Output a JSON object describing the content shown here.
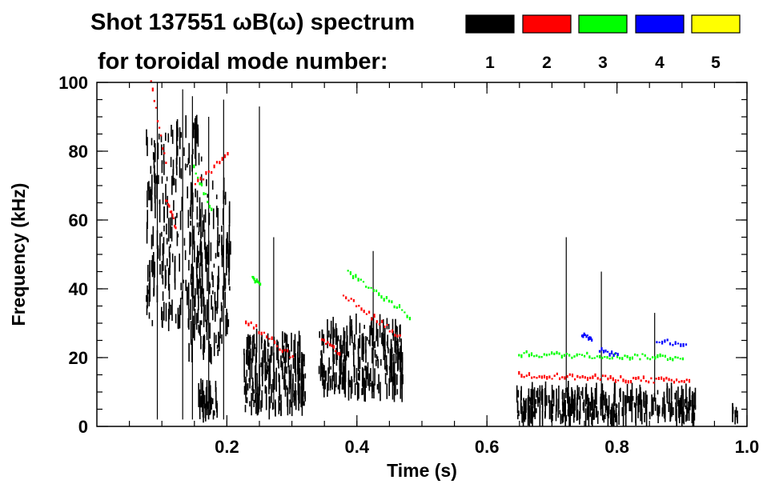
{
  "chart_data": {
    "type": "scatter",
    "title_line1": "Shot 137551 ωB(ω) spectrum",
    "title_line2": "for toroidal mode number:",
    "xlabel": "Time (s)",
    "ylabel": "Frequency (kHz)",
    "xlim": [
      0.0,
      1.0
    ],
    "ylim": [
      0,
      100
    ],
    "x_ticks": [
      0.2,
      0.4,
      0.6,
      0.8,
      1.0
    ],
    "x_tick_labels": [
      "0.2",
      "0.4",
      "0.6",
      "0.8",
      "1.0"
    ],
    "y_ticks": [
      0,
      20,
      40,
      60,
      80,
      100
    ],
    "y_tick_labels": [
      "0",
      "20",
      "40",
      "60",
      "80",
      "100"
    ],
    "x_minor_step": 0.05,
    "y_minor_step": 5,
    "legend": [
      {
        "mode": "1",
        "color": "#000000"
      },
      {
        "mode": "2",
        "color": "#ff0000"
      },
      {
        "mode": "3",
        "color": "#00ff00"
      },
      {
        "mode": "4",
        "color": "#0000ff"
      },
      {
        "mode": "5",
        "color": "#ffff00"
      }
    ],
    "series": [
      {
        "name": "n=1",
        "color": "#000000",
        "bands": [
          {
            "t0": 0.075,
            "t1": 0.16,
            "f_lo": 30,
            "f_hi": 88,
            "density": 220
          },
          {
            "t0": 0.14,
            "t1": 0.205,
            "f_lo": 20,
            "f_hi": 72,
            "density": 160
          },
          {
            "t0": 0.155,
            "t1": 0.185,
            "f_lo": 3,
            "f_hi": 12,
            "density": 40
          },
          {
            "t0": 0.225,
            "t1": 0.32,
            "f_lo": 5,
            "f_hi": 26,
            "density": 220
          },
          {
            "t0": 0.34,
            "t1": 0.47,
            "f_lo": 10,
            "f_hi": 30,
            "density": 240
          },
          {
            "t0": 0.645,
            "t1": 0.92,
            "f_lo": 2,
            "f_hi": 10,
            "density": 320
          },
          {
            "t0": 0.975,
            "t1": 0.985,
            "f_lo": 2,
            "f_hi": 6,
            "density": 10
          }
        ],
        "lines": [
          {
            "t0": 0.093,
            "t1": 0.093,
            "f0": 2,
            "f1": 100
          },
          {
            "t0": 0.132,
            "t1": 0.132,
            "f0": 2,
            "f1": 98
          },
          {
            "t0": 0.147,
            "t1": 0.147,
            "f0": 2,
            "f1": 96
          },
          {
            "t0": 0.172,
            "t1": 0.172,
            "f0": 2,
            "f1": 90
          },
          {
            "t0": 0.195,
            "t1": 0.195,
            "f0": 2,
            "f1": 95
          },
          {
            "t0": 0.25,
            "t1": 0.25,
            "f0": 5,
            "f1": 93
          },
          {
            "t0": 0.272,
            "t1": 0.272,
            "f0": 5,
            "f1": 55
          },
          {
            "t0": 0.425,
            "t1": 0.425,
            "f0": 10,
            "f1": 51
          },
          {
            "t0": 0.722,
            "t1": 0.722,
            "f0": 10,
            "f1": 55
          },
          {
            "t0": 0.776,
            "t1": 0.776,
            "f0": 8,
            "f1": 45
          },
          {
            "t0": 0.858,
            "t1": 0.858,
            "f0": 8,
            "f1": 33
          }
        ]
      },
      {
        "name": "n=2",
        "color": "#ff0000",
        "trends": [
          {
            "t0": 0.082,
            "t1": 0.105,
            "f0": 100,
            "f1": 76
          },
          {
            "t0": 0.105,
            "t1": 0.12,
            "f0": 66,
            "f1": 58
          },
          {
            "t0": 0.15,
            "t1": 0.2,
            "f0": 70,
            "f1": 79
          },
          {
            "t0": 0.228,
            "t1": 0.3,
            "f0": 31,
            "f1": 20
          },
          {
            "t0": 0.345,
            "t1": 0.372,
            "f0": 25,
            "f1": 21
          },
          {
            "t0": 0.378,
            "t1": 0.465,
            "f0": 38,
            "f1": 26
          },
          {
            "t0": 0.648,
            "t1": 0.91,
            "f0": 15,
            "f1": 13
          }
        ]
      },
      {
        "name": "n=3",
        "color": "#00ff00",
        "trends": [
          {
            "t0": 0.148,
            "t1": 0.175,
            "f0": 75,
            "f1": 63
          },
          {
            "t0": 0.238,
            "t1": 0.25,
            "f0": 43,
            "f1": 41
          },
          {
            "t0": 0.385,
            "t1": 0.48,
            "f0": 45,
            "f1": 32
          },
          {
            "t0": 0.648,
            "t1": 0.9,
            "f0": 21,
            "f1": 20
          }
        ]
      },
      {
        "name": "n=4",
        "color": "#0000ff",
        "trends": [
          {
            "t0": 0.745,
            "t1": 0.76,
            "f0": 27,
            "f1": 25
          },
          {
            "t0": 0.86,
            "t1": 0.905,
            "f0": 25,
            "f1": 24
          },
          {
            "t0": 0.772,
            "t1": 0.8,
            "f0": 22,
            "f1": 21
          }
        ]
      }
    ]
  }
}
